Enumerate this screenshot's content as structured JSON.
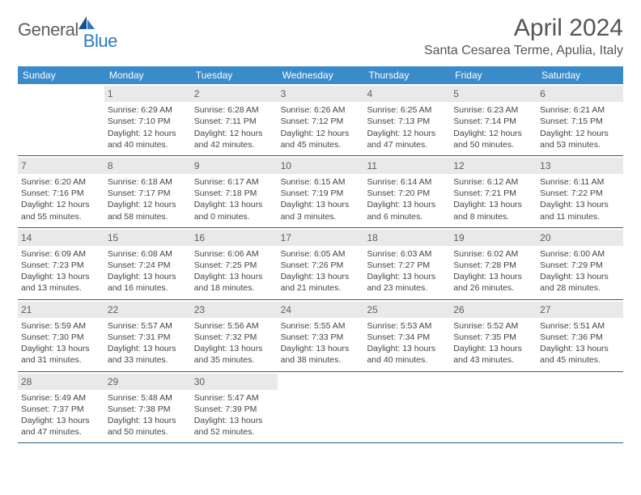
{
  "logo": {
    "part1": "General",
    "part2": "Blue"
  },
  "title": "April 2024",
  "location": "Santa Cesarea Terme, Apulia, Italy",
  "dayNames": [
    "Sunday",
    "Monday",
    "Tuesday",
    "Wednesday",
    "Thursday",
    "Friday",
    "Saturday"
  ],
  "colors": {
    "headerBg": "#3a8bc9",
    "headerText": "#ffffff",
    "dayNumBg": "#e9e9e9",
    "rowBorder": "#2f5d87",
    "logoAccent": "#2b7bbf",
    "bodyText": "#444444"
  },
  "weeks": [
    [
      null,
      {
        "n": "1",
        "sr": "Sunrise: 6:29 AM",
        "ss": "Sunset: 7:10 PM",
        "dl": "Daylight: 12 hours and 40 minutes."
      },
      {
        "n": "2",
        "sr": "Sunrise: 6:28 AM",
        "ss": "Sunset: 7:11 PM",
        "dl": "Daylight: 12 hours and 42 minutes."
      },
      {
        "n": "3",
        "sr": "Sunrise: 6:26 AM",
        "ss": "Sunset: 7:12 PM",
        "dl": "Daylight: 12 hours and 45 minutes."
      },
      {
        "n": "4",
        "sr": "Sunrise: 6:25 AM",
        "ss": "Sunset: 7:13 PM",
        "dl": "Daylight: 12 hours and 47 minutes."
      },
      {
        "n": "5",
        "sr": "Sunrise: 6:23 AM",
        "ss": "Sunset: 7:14 PM",
        "dl": "Daylight: 12 hours and 50 minutes."
      },
      {
        "n": "6",
        "sr": "Sunrise: 6:21 AM",
        "ss": "Sunset: 7:15 PM",
        "dl": "Daylight: 12 hours and 53 minutes."
      }
    ],
    [
      {
        "n": "7",
        "sr": "Sunrise: 6:20 AM",
        "ss": "Sunset: 7:16 PM",
        "dl": "Daylight: 12 hours and 55 minutes."
      },
      {
        "n": "8",
        "sr": "Sunrise: 6:18 AM",
        "ss": "Sunset: 7:17 PM",
        "dl": "Daylight: 12 hours and 58 minutes."
      },
      {
        "n": "9",
        "sr": "Sunrise: 6:17 AM",
        "ss": "Sunset: 7:18 PM",
        "dl": "Daylight: 13 hours and 0 minutes."
      },
      {
        "n": "10",
        "sr": "Sunrise: 6:15 AM",
        "ss": "Sunset: 7:19 PM",
        "dl": "Daylight: 13 hours and 3 minutes."
      },
      {
        "n": "11",
        "sr": "Sunrise: 6:14 AM",
        "ss": "Sunset: 7:20 PM",
        "dl": "Daylight: 13 hours and 6 minutes."
      },
      {
        "n": "12",
        "sr": "Sunrise: 6:12 AM",
        "ss": "Sunset: 7:21 PM",
        "dl": "Daylight: 13 hours and 8 minutes."
      },
      {
        "n": "13",
        "sr": "Sunrise: 6:11 AM",
        "ss": "Sunset: 7:22 PM",
        "dl": "Daylight: 13 hours and 11 minutes."
      }
    ],
    [
      {
        "n": "14",
        "sr": "Sunrise: 6:09 AM",
        "ss": "Sunset: 7:23 PM",
        "dl": "Daylight: 13 hours and 13 minutes."
      },
      {
        "n": "15",
        "sr": "Sunrise: 6:08 AM",
        "ss": "Sunset: 7:24 PM",
        "dl": "Daylight: 13 hours and 16 minutes."
      },
      {
        "n": "16",
        "sr": "Sunrise: 6:06 AM",
        "ss": "Sunset: 7:25 PM",
        "dl": "Daylight: 13 hours and 18 minutes."
      },
      {
        "n": "17",
        "sr": "Sunrise: 6:05 AM",
        "ss": "Sunset: 7:26 PM",
        "dl": "Daylight: 13 hours and 21 minutes."
      },
      {
        "n": "18",
        "sr": "Sunrise: 6:03 AM",
        "ss": "Sunset: 7:27 PM",
        "dl": "Daylight: 13 hours and 23 minutes."
      },
      {
        "n": "19",
        "sr": "Sunrise: 6:02 AM",
        "ss": "Sunset: 7:28 PM",
        "dl": "Daylight: 13 hours and 26 minutes."
      },
      {
        "n": "20",
        "sr": "Sunrise: 6:00 AM",
        "ss": "Sunset: 7:29 PM",
        "dl": "Daylight: 13 hours and 28 minutes."
      }
    ],
    [
      {
        "n": "21",
        "sr": "Sunrise: 5:59 AM",
        "ss": "Sunset: 7:30 PM",
        "dl": "Daylight: 13 hours and 31 minutes."
      },
      {
        "n": "22",
        "sr": "Sunrise: 5:57 AM",
        "ss": "Sunset: 7:31 PM",
        "dl": "Daylight: 13 hours and 33 minutes."
      },
      {
        "n": "23",
        "sr": "Sunrise: 5:56 AM",
        "ss": "Sunset: 7:32 PM",
        "dl": "Daylight: 13 hours and 35 minutes."
      },
      {
        "n": "24",
        "sr": "Sunrise: 5:55 AM",
        "ss": "Sunset: 7:33 PM",
        "dl": "Daylight: 13 hours and 38 minutes."
      },
      {
        "n": "25",
        "sr": "Sunrise: 5:53 AM",
        "ss": "Sunset: 7:34 PM",
        "dl": "Daylight: 13 hours and 40 minutes."
      },
      {
        "n": "26",
        "sr": "Sunrise: 5:52 AM",
        "ss": "Sunset: 7:35 PM",
        "dl": "Daylight: 13 hours and 43 minutes."
      },
      {
        "n": "27",
        "sr": "Sunrise: 5:51 AM",
        "ss": "Sunset: 7:36 PM",
        "dl": "Daylight: 13 hours and 45 minutes."
      }
    ],
    [
      {
        "n": "28",
        "sr": "Sunrise: 5:49 AM",
        "ss": "Sunset: 7:37 PM",
        "dl": "Daylight: 13 hours and 47 minutes."
      },
      {
        "n": "29",
        "sr": "Sunrise: 5:48 AM",
        "ss": "Sunset: 7:38 PM",
        "dl": "Daylight: 13 hours and 50 minutes."
      },
      {
        "n": "30",
        "sr": "Sunrise: 5:47 AM",
        "ss": "Sunset: 7:39 PM",
        "dl": "Daylight: 13 hours and 52 minutes."
      },
      null,
      null,
      null,
      null
    ]
  ]
}
